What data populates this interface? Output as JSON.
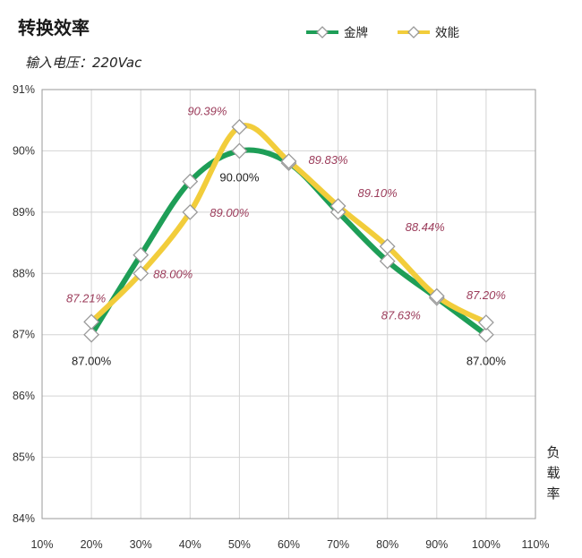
{
  "chart_data": {
    "type": "line",
    "title": "转换效率",
    "subtitle": "输入电压：220Vac",
    "xlabel": "负载率",
    "ylabel": "",
    "x_categories": [
      "10%",
      "20%",
      "30%",
      "40%",
      "50%",
      "60%",
      "70%",
      "80%",
      "90%",
      "100%",
      "110%"
    ],
    "x_values": [
      10,
      20,
      30,
      40,
      50,
      60,
      70,
      80,
      90,
      100,
      110
    ],
    "y_ticks": [
      "84%",
      "85%",
      "86%",
      "87%",
      "88%",
      "89%",
      "90%",
      "91%"
    ],
    "xlim": [
      10,
      110
    ],
    "ylim": [
      84,
      91
    ],
    "grid": true,
    "legend_position": "top-right",
    "series": [
      {
        "name": "金牌",
        "color": "#1e9e57",
        "marker": "diamond",
        "x": [
          20,
          30,
          40,
          50,
          60,
          70,
          80,
          90,
          100
        ],
        "values": [
          87.0,
          88.3,
          89.5,
          90.0,
          89.8,
          89.0,
          88.2,
          87.6,
          87.0
        ],
        "data_labels": [
          {
            "x": 20,
            "text": "87.00%"
          },
          {
            "x": 50,
            "text": "90.00%"
          },
          {
            "x": 100,
            "text": "87.00%"
          }
        ]
      },
      {
        "name": "效能",
        "color": "#f2cd3b",
        "marker": "diamond",
        "x": [
          20,
          30,
          40,
          50,
          60,
          70,
          80,
          90,
          100
        ],
        "values": [
          87.21,
          88.0,
          89.0,
          90.39,
          89.83,
          89.1,
          88.44,
          87.63,
          87.2
        ],
        "data_labels": [
          {
            "x": 20,
            "text": "87.21%"
          },
          {
            "x": 30,
            "text": "88.00%"
          },
          {
            "x": 40,
            "text": "89.00%"
          },
          {
            "x": 50,
            "text": "90.39%"
          },
          {
            "x": 60,
            "text": "89.83%"
          },
          {
            "x": 70,
            "text": "89.10%"
          },
          {
            "x": 80,
            "text": "88.44%"
          },
          {
            "x": 90,
            "text": "87.63%"
          },
          {
            "x": 100,
            "text": "87.20%"
          }
        ]
      }
    ]
  }
}
